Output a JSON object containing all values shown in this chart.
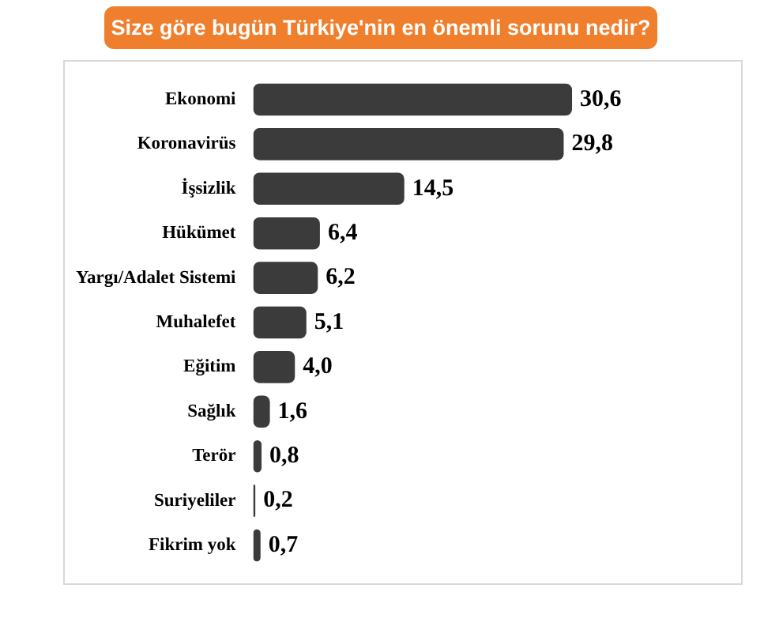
{
  "chart_data": {
    "type": "bar",
    "orientation": "horizontal",
    "title": "Size göre bugün Türkiye'nin en önemli sorunu nedir?",
    "categories": [
      "Ekonomi",
      "Koronavirüs",
      "İşsizlik",
      "Hükümet",
      "Yargı/Adalet Sistemi",
      "Muhalefet",
      "Eğitim",
      "Sağlık",
      "Terör",
      "Suriyeliler",
      "Fikrim yok"
    ],
    "values": [
      30.6,
      29.8,
      14.5,
      6.4,
      6.2,
      5.1,
      4.0,
      1.6,
      0.8,
      0.2,
      0.7
    ],
    "value_labels": [
      "30,6",
      "29,8",
      "14,5",
      "6,4",
      "6,2",
      "5,1",
      "4,0",
      "1,6",
      "0,8",
      "0,2",
      "0,7"
    ],
    "color": "#3b3b3b"
  }
}
